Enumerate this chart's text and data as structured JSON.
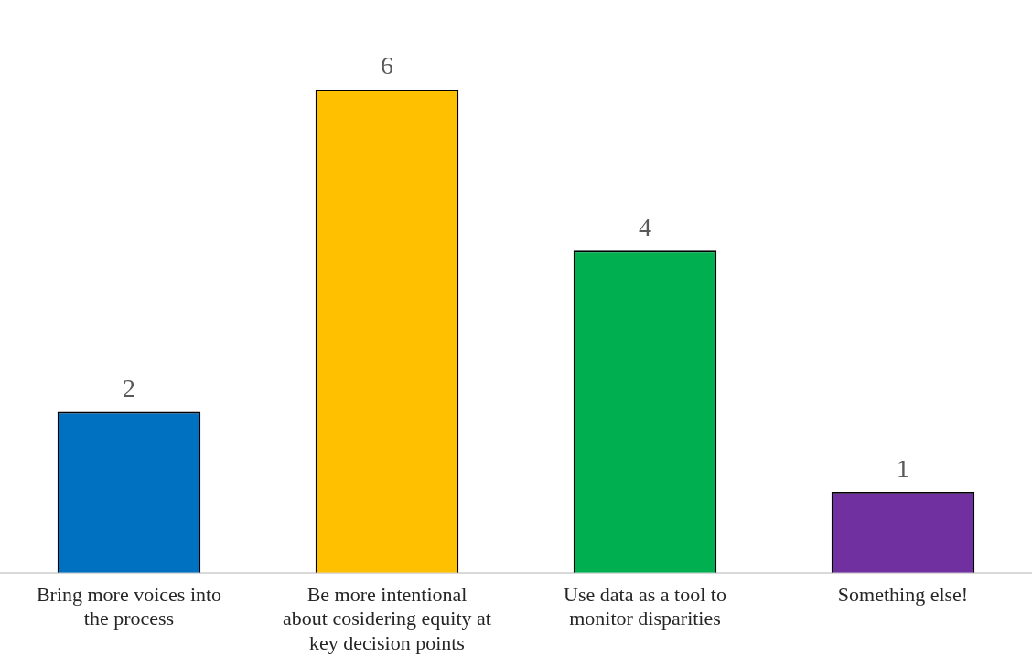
{
  "chart_data": {
    "type": "bar",
    "categories": [
      "Bring more voices into the process",
      "Be more intentional about cosidering equity at key decision points",
      "Use data as a tool to monitor disparities",
      "Something else!"
    ],
    "values": [
      2,
      6,
      4,
      1
    ],
    "colors": [
      "#0070c0",
      "#ffc000",
      "#00b050",
      "#7030a0"
    ],
    "data_labels": true,
    "grid": false,
    "legend": false
  }
}
